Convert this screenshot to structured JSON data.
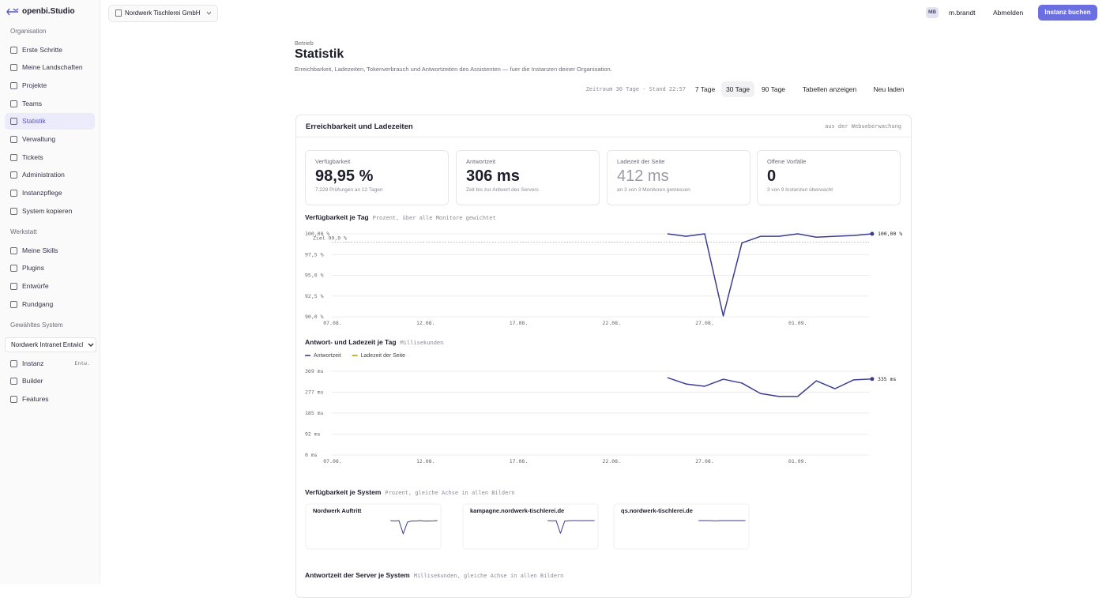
{
  "logo": "openbi.Studio",
  "sidebar": [
    {
      "title": "Organisation",
      "items": [
        {
          "label": "Erste Schritte"
        },
        {
          "label": "Meine Landschaften"
        },
        {
          "label": "Projekte"
        },
        {
          "label": "Teams"
        },
        {
          "label": "Statistik",
          "active": true
        },
        {
          "label": "Verwaltung"
        },
        {
          "label": "Tickets"
        },
        {
          "label": "Administration"
        },
        {
          "label": "Instanzpflege"
        },
        {
          "label": "System kopieren"
        }
      ]
    },
    {
      "title": "Werkstatt",
      "items": [
        {
          "label": "Meine Skills"
        },
        {
          "label": "Plugins"
        },
        {
          "label": "Entwürfe"
        },
        {
          "label": "Rundgang"
        }
      ]
    },
    {
      "title": "Gewähltes System",
      "select": "Nordwerk Intranet Entwicl",
      "items": [
        {
          "label": "Instanz",
          "badge": "Entw."
        },
        {
          "label": "Builder"
        },
        {
          "label": "Features"
        }
      ]
    }
  ],
  "topbar": {
    "organisation": "Nordwerk Tischlerei GmbH",
    "avatar": "MB",
    "user": "m.brandt",
    "logout": "Abmelden",
    "cta": "Instanz buchen"
  },
  "header": {
    "eyebrow": "Betrieb",
    "title": "Statistik",
    "description": "Erreichbarkeit, Ladezeiten, Tokenverbrauch und Antwortzeiten des Assistenten — fuer die Instanzen deiner Organisation."
  },
  "toolbar": {
    "status": "Zeitraum 30 Tage · Stand 22:57",
    "buttons": [
      {
        "label": "7 Tage"
      },
      {
        "label": "30 Tage",
        "active": true
      },
      {
        "label": "90 Tage"
      },
      {
        "label": "Tabellen anzeigen"
      },
      {
        "label": "Neu laden"
      }
    ]
  },
  "card": {
    "title": "Erreichbarkeit und Ladezeiten",
    "source": "aus der Webueberwachung",
    "kpis": [
      {
        "label": "Verfügbarkeit",
        "value": "98,95 %",
        "note": "7.229 Prüfungen an 12 Tagen"
      },
      {
        "label": "Antwortzeit",
        "value": "306 ms",
        "note": "Zeit bis zur Antwort des Servers"
      },
      {
        "label": "Ladezeit der Seite",
        "value": "412 ms",
        "note": "an 3 von 3 Monitoren gemessen",
        "muted": true
      },
      {
        "label": "Offene Vorfälle",
        "value": "0",
        "note": "3 von 9 Instanzen überwacht"
      }
    ]
  },
  "system_sections": [
    {
      "title": "Verfügbarkeit je System",
      "subtitle": "Prozent, gleiche Achse in allen Bildern"
    },
    {
      "title": "Antwortzeit der Server je System",
      "subtitle": "Millisekunden, gleiche Achse in allen Bildern"
    }
  ],
  "chart_data": [
    {
      "type": "line",
      "title": "Verfügbarkeit je Tag",
      "subtitle": "Prozent, über alle Monitore gewichtet",
      "categories": [
        "07.08.",
        null,
        null,
        null,
        null,
        "12.08.",
        null,
        null,
        null,
        null,
        "17.08.",
        null,
        null,
        null,
        null,
        "22.08.",
        null,
        null,
        null,
        null,
        "27.08.",
        null,
        null,
        null,
        null,
        "01.09.",
        null,
        null,
        null,
        null
      ],
      "color": "#3a3d8f",
      "values": [
        null,
        null,
        null,
        null,
        null,
        null,
        null,
        null,
        null,
        null,
        null,
        null,
        null,
        null,
        null,
        null,
        null,
        null,
        100,
        99.7,
        100,
        90.1,
        98.9,
        99.7,
        99.7,
        100,
        99.6,
        99.7,
        99.8,
        100
      ],
      "value_labels": [
        null,
        null,
        null,
        null,
        null,
        null,
        null,
        null,
        null,
        null,
        null,
        null,
        null,
        null,
        null,
        null,
        null,
        null,
        null,
        null,
        null,
        null,
        null,
        null,
        null,
        null,
        null,
        null,
        null,
        "100,00 %"
      ],
      "target": {
        "value": 99,
        "label": "Ziel 99,0 %"
      },
      "ylim": [
        90,
        100
      ],
      "yticks": [
        {
          "value": 100,
          "label": "100,00 %"
        },
        {
          "value": 97.5,
          "label": "97,5 %"
        },
        {
          "value": 95,
          "label": "95,0 %"
        },
        {
          "value": 92.5,
          "label": "92,5 %"
        },
        {
          "value": 90,
          "label": "90,0 %"
        }
      ],
      "grid": true
    },
    {
      "type": "line",
      "title": "Antwort- und Ladezeit je Tag",
      "subtitle": "Millisekunden",
      "categories": [
        "07.08.",
        null,
        null,
        null,
        null,
        "12.08.",
        null,
        null,
        null,
        null,
        "17.08.",
        null,
        null,
        null,
        null,
        "22.08.",
        null,
        null,
        null,
        null,
        "27.08.",
        null,
        null,
        null,
        null,
        "01.09.",
        null,
        null,
        null,
        null
      ],
      "series": [
        {
          "name": "Antwortzeit",
          "color": "#3a3d8f",
          "values": [
            null,
            null,
            null,
            null,
            null,
            null,
            null,
            null,
            null,
            null,
            null,
            null,
            null,
            null,
            null,
            null,
            null,
            null,
            341,
            313,
            303,
            334,
            317,
            271,
            258,
            258,
            327,
            292,
            331,
            335
          ],
          "value_labels": [
            null,
            null,
            null,
            null,
            null,
            null,
            null,
            null,
            null,
            null,
            null,
            null,
            null,
            null,
            null,
            null,
            null,
            null,
            null,
            null,
            null,
            null,
            null,
            null,
            null,
            null,
            null,
            null,
            null,
            "335 ms"
          ]
        },
        {
          "name": "Ladezeit der Seite",
          "color": "#b5a300",
          "values": [
            null,
            null,
            null,
            null,
            null,
            null,
            null,
            null,
            null,
            null,
            null,
            null,
            null,
            null,
            null,
            null,
            null,
            null,
            null,
            null,
            null,
            null,
            null,
            null,
            null,
            null,
            null,
            null,
            null,
            null
          ]
        }
      ],
      "ylim": [
        0,
        369
      ],
      "yticks": [
        {
          "value": 369,
          "label": "369 ms"
        },
        {
          "value": 277,
          "label": "277 ms"
        },
        {
          "value": 185,
          "label": "185 ms"
        },
        {
          "value": 92,
          "label": "92 ms"
        },
        {
          "value": 0,
          "label": "0 ms"
        }
      ],
      "grid": true,
      "legend": "top-left"
    },
    {
      "type": "line",
      "title": "Nordwerk Auftritt",
      "color": "#3a3d8f",
      "ylim": [
        90,
        100
      ],
      "values": [
        null,
        null,
        null,
        null,
        null,
        null,
        null,
        null,
        null,
        null,
        null,
        null,
        null,
        null,
        null,
        null,
        null,
        null,
        100,
        99.7,
        100,
        90.1,
        98.9,
        99.7,
        99.7,
        100,
        99.6,
        99.7,
        99.8,
        100
      ]
    },
    {
      "type": "line",
      "title": "kampagne.nordwerk-tischlerei.de",
      "color": "#3a3d8f",
      "ylim": [
        90,
        100
      ],
      "values": [
        null,
        null,
        null,
        null,
        null,
        null,
        null,
        null,
        null,
        null,
        null,
        null,
        null,
        null,
        null,
        null,
        null,
        null,
        100,
        99.8,
        99.9,
        90.5,
        99.6,
        99.9,
        100,
        100,
        99.9,
        100,
        100,
        100
      ]
    },
    {
      "type": "line",
      "title": "qs.nordwerk-tischlerei.de",
      "color": "#3a3d8f",
      "ylim": [
        90,
        100
      ],
      "values": [
        null,
        null,
        null,
        null,
        null,
        null,
        null,
        null,
        null,
        null,
        null,
        null,
        null,
        null,
        null,
        null,
        null,
        null,
        100,
        100,
        100,
        99.9,
        99.8,
        100,
        100,
        100,
        100,
        100,
        100,
        100
      ]
    }
  ]
}
